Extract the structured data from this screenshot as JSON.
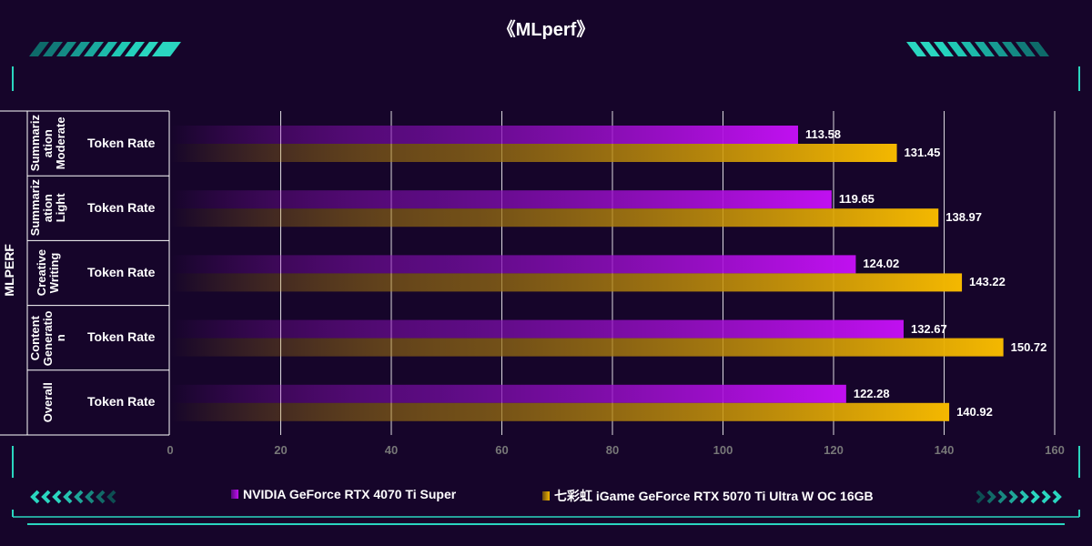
{
  "title": "《MLperf》",
  "axis_title": "MLPERF",
  "colors": {
    "series1": "#c010f0",
    "series2": "#f4b800",
    "accent": "#2ad6c0",
    "background": "#16052a",
    "grid": "#ffffff"
  },
  "chart_data": {
    "type": "bar",
    "orientation": "horizontal",
    "title": "《MLperf》",
    "xlim": [
      0,
      160
    ],
    "xticks": [
      0,
      20,
      40,
      60,
      80,
      100,
      120,
      140,
      160
    ],
    "ylabel": "MLPERF",
    "categories": [
      {
        "group": "Summarization Moderate",
        "group_lines": [
          "Summariz",
          "ation",
          "Moderate"
        ],
        "label": "Token Rate"
      },
      {
        "group": "Summarization Light",
        "group_lines": [
          "Summariz",
          "ation",
          "Light"
        ],
        "label": "Token Rate"
      },
      {
        "group": "Creative Writing",
        "group_lines": [
          "Creative",
          "Writing"
        ],
        "label": "Token Rate"
      },
      {
        "group": "Content Generation",
        "group_lines": [
          "Content",
          "Generatio",
          "n"
        ],
        "label": "Token Rate"
      },
      {
        "group": "Overall",
        "group_lines": [
          "Overall"
        ],
        "label": "Token Rate"
      }
    ],
    "series": [
      {
        "name": "NVIDIA GeForce RTX 4070 Ti Super",
        "values": [
          113.58,
          119.65,
          124.02,
          132.67,
          122.28
        ],
        "labels": [
          "113.58",
          "119.65",
          "124.02",
          "132.67",
          "122.28"
        ]
      },
      {
        "name": "七彩虹 iGame GeForce RTX 5070 Ti Ultra W OC 16GB",
        "values": [
          131.45,
          138.97,
          143.22,
          150.72,
          140.92
        ],
        "labels": [
          "131.45",
          "138.97",
          "143.22",
          "150.72",
          "140.92"
        ]
      }
    ],
    "legend_position": "bottom"
  }
}
